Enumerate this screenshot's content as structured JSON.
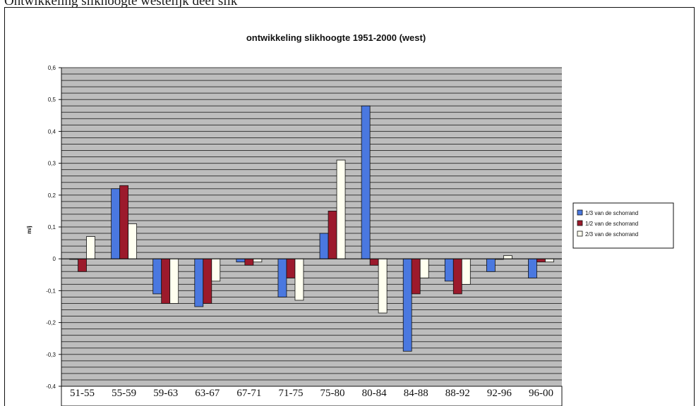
{
  "caption": "Ontwikkeling slikhoogte westelijk deel slik",
  "colors": {
    "series1": "#4a78e0",
    "series2": "#9c1a2c",
    "series3": "#fffff0",
    "plot_bg": "#bdbdbd",
    "grid": "#222222"
  },
  "chart_data": {
    "type": "bar",
    "title": "ontwikkeling slikhoogte 1951-2000 (west)",
    "xlabel": "",
    "ylabel": "m/j",
    "ylim": [
      -0.4,
      0.6
    ],
    "yticks": [
      -0.4,
      -0.3,
      -0.2,
      -0.1,
      0,
      0.1,
      0.2,
      0.3,
      0.4,
      0.5,
      0.6
    ],
    "ytick_labels": [
      "-0,4",
      "-0,3",
      "-0,2",
      "-0,1",
      "0",
      "0,1",
      "0,2",
      "0,3",
      "0,4",
      "0,5",
      "0,6"
    ],
    "grid": true,
    "legend_position": "right",
    "categories": [
      "51-55",
      "55-59",
      "59-63",
      "63-67",
      "67-71",
      "71-75",
      "75-80",
      "80-84",
      "84-88",
      "88-92",
      "92-96",
      "96-00"
    ],
    "series": [
      {
        "name": "1/3 van de schorrand",
        "values": [
          0,
          0.22,
          -0.11,
          -0.15,
          -0.01,
          -0.12,
          0.08,
          0.48,
          -0.29,
          -0.07,
          -0.04,
          -0.06
        ]
      },
      {
        "name": "1/2 van de schorrand",
        "values": [
          -0.04,
          0.23,
          -0.14,
          -0.14,
          -0.02,
          -0.06,
          0.15,
          -0.02,
          -0.11,
          -0.11,
          0,
          -0.01
        ]
      },
      {
        "name": "2/3 van de schorrand",
        "values": [
          0.07,
          0.11,
          -0.14,
          -0.07,
          -0.01,
          -0.13,
          0.31,
          -0.17,
          -0.06,
          -0.08,
          0.01,
          -0.01
        ]
      }
    ]
  }
}
